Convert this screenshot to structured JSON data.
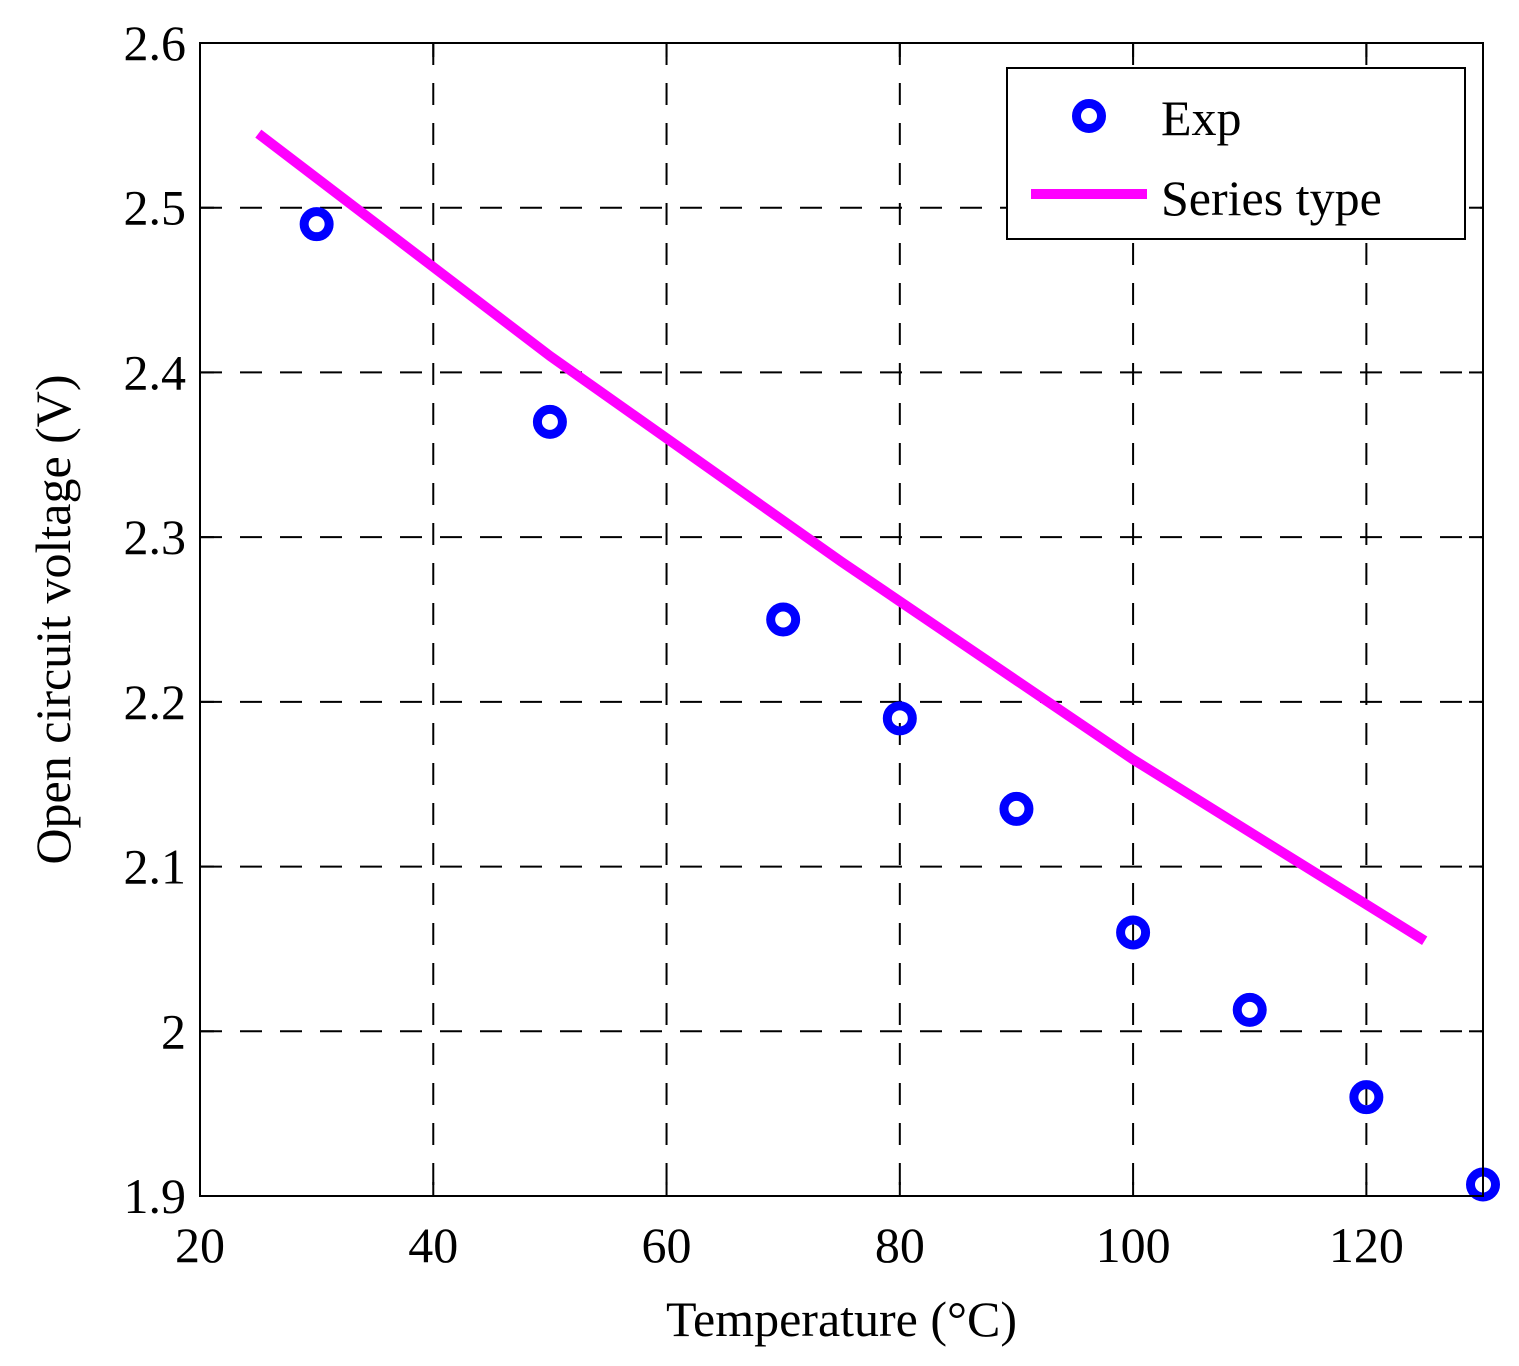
{
  "chart_data": {
    "type": "scatter",
    "title": "",
    "xlabel": "Temperature (°C)",
    "ylabel": "Open circuit voltage (V)",
    "xlim": [
      20,
      130
    ],
    "ylim": [
      1.9,
      2.6
    ],
    "xticks": [
      20,
      40,
      60,
      80,
      100,
      120
    ],
    "yticks": [
      1.9,
      2.0,
      2.1,
      2.2,
      2.3,
      2.4,
      2.5,
      2.6
    ],
    "xtick_labels": [
      "20",
      "40",
      "60",
      "80",
      "100",
      "120"
    ],
    "ytick_labels": [
      "1.9",
      "2",
      "2.1",
      "2.2",
      "2.3",
      "2.4",
      "2.5",
      "2.6"
    ],
    "grid": true,
    "legend_position": "top-right",
    "series": [
      {
        "name": "Exp",
        "kind": "markers",
        "color": "#0000ff",
        "x": [
          30,
          50,
          70,
          80,
          90,
          100,
          110,
          120,
          130
        ],
        "y": [
          2.49,
          2.37,
          2.25,
          2.19,
          2.135,
          2.06,
          2.013,
          1.96,
          1.907
        ]
      },
      {
        "name": "Series type",
        "kind": "line",
        "color": "#ff00ff",
        "x": [
          25,
          50,
          75,
          100,
          125
        ],
        "y": [
          2.545,
          2.41,
          2.285,
          2.165,
          2.055
        ]
      }
    ]
  }
}
